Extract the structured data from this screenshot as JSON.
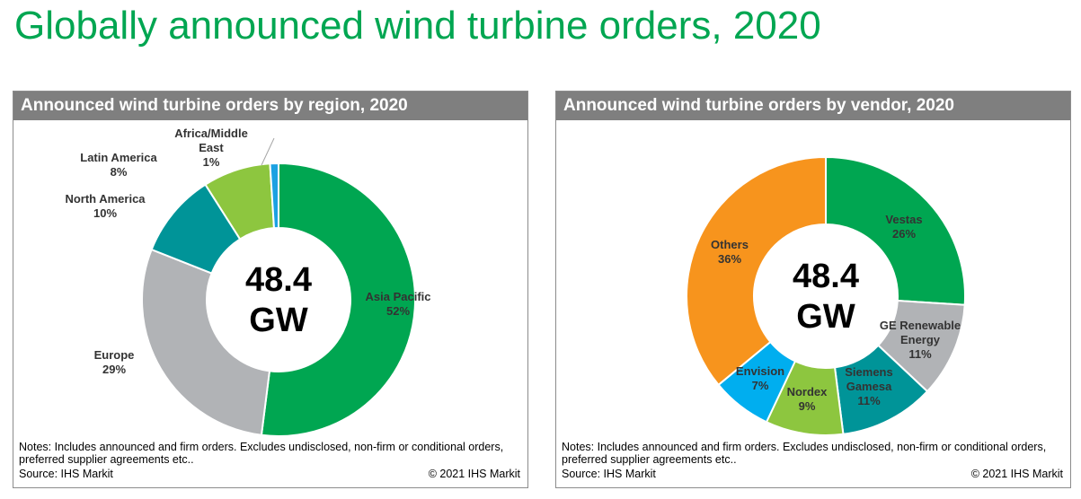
{
  "page_title": "Globally announced wind turbine orders, 2020",
  "chart_data": [
    {
      "type": "pie",
      "title": "Announced wind turbine orders by region, 2020",
      "center_value": "48.4",
      "center_unit": "GW",
      "slices": [
        {
          "label": "Asia Pacific",
          "value": 52,
          "value_label": "52%",
          "color": "#00a651"
        },
        {
          "label": "Europe",
          "value": 29,
          "value_label": "29%",
          "color": "#b1b3b6"
        },
        {
          "label": "North America",
          "value": 10,
          "value_label": "10%",
          "color": "#009498"
        },
        {
          "label": "Latin America",
          "value": 8,
          "value_label": "8%",
          "color": "#8dc63f"
        },
        {
          "label": "Africa/Middle East",
          "value": 1,
          "value_label": "1%",
          "color": "#1ba1e2"
        }
      ],
      "notes": "Notes: Includes announced and firm orders. Excludes undisclosed, non-firm or conditional orders, preferred supplier agreements etc..",
      "source": "Source: IHS Markit",
      "copyright": "© 2021 IHS Markit"
    },
    {
      "type": "pie",
      "title": "Announced wind turbine orders by vendor, 2020",
      "center_value": "48.4",
      "center_unit": "GW",
      "slices": [
        {
          "label": "Vestas",
          "value": 26,
          "value_label": "26%",
          "color": "#00a651"
        },
        {
          "label": "GE Renewable Energy",
          "value": 11,
          "value_label": "11%",
          "color": "#b1b3b6"
        },
        {
          "label": "Siemens Gamesa",
          "value": 11,
          "value_label": "11%",
          "color": "#009498"
        },
        {
          "label": "Nordex",
          "value": 9,
          "value_label": "9%",
          "color": "#8dc63f"
        },
        {
          "label": "Envision",
          "value": 7,
          "value_label": "7%",
          "color": "#00aeef"
        },
        {
          "label": "Others",
          "value": 36,
          "value_label": "36%",
          "color": "#f7941d"
        }
      ],
      "notes": "Notes: Includes announced and firm orders. Excludes undisclosed, non-firm or conditional orders, preferred supplier agreements etc..",
      "source": "Source: IHS Markit",
      "copyright": "© 2021 IHS Markit"
    }
  ]
}
